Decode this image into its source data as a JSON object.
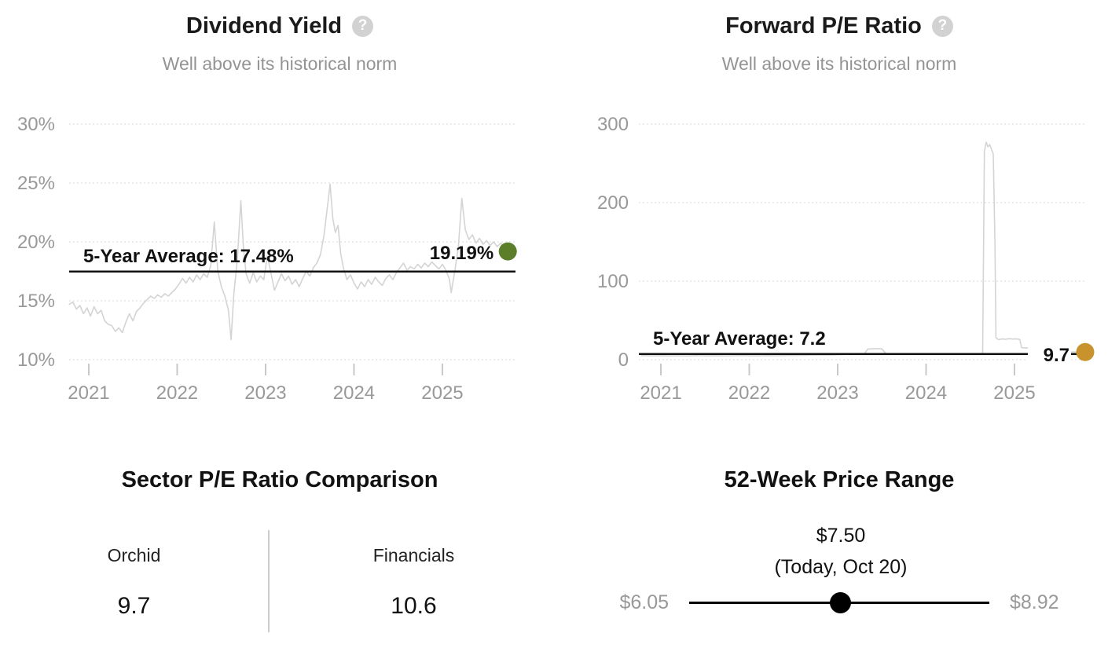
{
  "icons": {
    "help": "?"
  },
  "colors": {
    "dividend_dot": "#5a7e2a",
    "pe_dot": "#c8922d",
    "series_line": "#d4d4d4",
    "average_line": "#111111",
    "axis_text": "#999999"
  },
  "chart_data": [
    {
      "type": "line",
      "title": "Dividend Yield",
      "subtitle": "Well above its historical norm",
      "y_ticks": [
        30,
        25,
        20,
        15,
        10
      ],
      "y_suffix": "%",
      "y_range": [
        10,
        30
      ],
      "x_ticks": [
        2021,
        2022,
        2023,
        2024,
        2025
      ],
      "x_range": [
        2020.778,
        2025.827
      ],
      "grid": "dotted-horizontal",
      "legend": "none",
      "average": {
        "label": "5-Year Average: 17.48%",
        "value": 17.48
      },
      "current": {
        "label": "19.19%",
        "value": 19.19,
        "x": 2025.74,
        "dot_color": "#5a7e2a",
        "label_position": "above"
      },
      "series": [
        [
          2020.78,
          14.7
        ],
        [
          2020.82,
          14.9
        ],
        [
          2020.86,
          14.3
        ],
        [
          2020.9,
          14.6
        ],
        [
          2020.94,
          13.9
        ],
        [
          2020.98,
          14.4
        ],
        [
          2021.02,
          13.7
        ],
        [
          2021.06,
          14.5
        ],
        [
          2021.1,
          13.9
        ],
        [
          2021.14,
          14.2
        ],
        [
          2021.18,
          13.3
        ],
        [
          2021.22,
          13.0
        ],
        [
          2021.26,
          12.9
        ],
        [
          2021.3,
          12.4
        ],
        [
          2021.34,
          12.7
        ],
        [
          2021.38,
          12.3
        ],
        [
          2021.42,
          13.2
        ],
        [
          2021.46,
          13.9
        ],
        [
          2021.5,
          13.3
        ],
        [
          2021.54,
          14.1
        ],
        [
          2021.58,
          14.4
        ],
        [
          2021.62,
          14.8
        ],
        [
          2021.66,
          15.1
        ],
        [
          2021.7,
          15.4
        ],
        [
          2021.74,
          15.2
        ],
        [
          2021.78,
          15.5
        ],
        [
          2021.82,
          15.3
        ],
        [
          2021.86,
          15.6
        ],
        [
          2021.9,
          15.4
        ],
        [
          2021.94,
          15.7
        ],
        [
          2021.98,
          16.0
        ],
        [
          2022.02,
          16.4
        ],
        [
          2022.06,
          16.9
        ],
        [
          2022.1,
          16.5
        ],
        [
          2022.14,
          17.0
        ],
        [
          2022.18,
          16.6
        ],
        [
          2022.22,
          17.2
        ],
        [
          2022.26,
          16.8
        ],
        [
          2022.3,
          17.3
        ],
        [
          2022.34,
          17.0
        ],
        [
          2022.38,
          18.0
        ],
        [
          2022.42,
          21.7
        ],
        [
          2022.46,
          17.5
        ],
        [
          2022.5,
          16.2
        ],
        [
          2022.54,
          15.4
        ],
        [
          2022.58,
          14.2
        ],
        [
          2022.61,
          11.7
        ],
        [
          2022.64,
          15.5
        ],
        [
          2022.68,
          18.5
        ],
        [
          2022.72,
          23.5
        ],
        [
          2022.75,
          19.5
        ],
        [
          2022.78,
          17.3
        ],
        [
          2022.82,
          16.5
        ],
        [
          2022.86,
          17.4
        ],
        [
          2022.9,
          16.6
        ],
        [
          2022.94,
          17.1
        ],
        [
          2022.98,
          16.8
        ],
        [
          2023.02,
          18.8
        ],
        [
          2023.06,
          17.4
        ],
        [
          2023.1,
          15.9
        ],
        [
          2023.14,
          16.6
        ],
        [
          2023.18,
          17.3
        ],
        [
          2023.22,
          16.7
        ],
        [
          2023.26,
          17.1
        ],
        [
          2023.3,
          16.4
        ],
        [
          2023.34,
          16.8
        ],
        [
          2023.38,
          16.2
        ],
        [
          2023.42,
          16.9
        ],
        [
          2023.46,
          17.5
        ],
        [
          2023.5,
          17.1
        ],
        [
          2023.54,
          17.8
        ],
        [
          2023.58,
          18.2
        ],
        [
          2023.62,
          18.9
        ],
        [
          2023.66,
          20.5
        ],
        [
          2023.7,
          23.0
        ],
        [
          2023.73,
          24.9
        ],
        [
          2023.76,
          22.0
        ],
        [
          2023.79,
          20.8
        ],
        [
          2023.82,
          21.4
        ],
        [
          2023.85,
          19.0
        ],
        [
          2023.88,
          17.8
        ],
        [
          2023.92,
          16.8
        ],
        [
          2023.96,
          17.2
        ],
        [
          2024.0,
          16.5
        ],
        [
          2024.04,
          16.0
        ],
        [
          2024.08,
          16.6
        ],
        [
          2024.12,
          16.2
        ],
        [
          2024.16,
          16.8
        ],
        [
          2024.2,
          16.4
        ],
        [
          2024.24,
          17.0
        ],
        [
          2024.28,
          16.6
        ],
        [
          2024.32,
          16.3
        ],
        [
          2024.36,
          16.9
        ],
        [
          2024.4,
          17.2
        ],
        [
          2024.44,
          16.8
        ],
        [
          2024.48,
          17.4
        ],
        [
          2024.52,
          17.8
        ],
        [
          2024.56,
          18.2
        ],
        [
          2024.6,
          17.6
        ],
        [
          2024.64,
          17.9
        ],
        [
          2024.68,
          17.7
        ],
        [
          2024.72,
          18.1
        ],
        [
          2024.76,
          17.8
        ],
        [
          2024.8,
          18.2
        ],
        [
          2024.84,
          17.9
        ],
        [
          2024.88,
          18.3
        ],
        [
          2024.92,
          18.0
        ],
        [
          2024.96,
          17.7
        ],
        [
          2025.0,
          18.1
        ],
        [
          2025.04,
          17.6
        ],
        [
          2025.08,
          16.8
        ],
        [
          2025.1,
          15.7
        ],
        [
          2025.14,
          17.5
        ],
        [
          2025.18,
          19.5
        ],
        [
          2025.22,
          23.7
        ],
        [
          2025.26,
          21.0
        ],
        [
          2025.3,
          20.2
        ],
        [
          2025.34,
          20.6
        ],
        [
          2025.38,
          19.9
        ],
        [
          2025.42,
          20.3
        ],
        [
          2025.46,
          19.8
        ],
        [
          2025.5,
          20.1
        ],
        [
          2025.54,
          19.7
        ],
        [
          2025.58,
          20.0
        ],
        [
          2025.62,
          19.6
        ],
        [
          2025.66,
          19.9
        ],
        [
          2025.7,
          19.5
        ],
        [
          2025.74,
          19.19
        ]
      ]
    },
    {
      "type": "line",
      "title": "Forward P/E Ratio",
      "subtitle": "Well above its historical norm",
      "y_ticks": [
        300,
        200,
        100,
        0
      ],
      "y_suffix": "",
      "y_range": [
        0,
        300
      ],
      "x_ticks": [
        2021,
        2022,
        2023,
        2024,
        2025
      ],
      "x_range": [
        2020.751,
        2025.818
      ],
      "grid": "dotted-horizontal",
      "legend": "none",
      "average": {
        "label": "5-Year Average: 7.2",
        "value": 7.2
      },
      "current": {
        "label": "9.7",
        "value": 9.7,
        "x": 2025.8,
        "dot_color": "#c8922d",
        "label_position": "inline"
      },
      "series": [
        [
          2020.78,
          5.2
        ],
        [
          2020.9,
          4.9
        ],
        [
          2021.0,
          5.1
        ],
        [
          2021.1,
          4.8
        ],
        [
          2021.2,
          5.0
        ],
        [
          2021.3,
          4.7
        ],
        [
          2021.4,
          5.2
        ],
        [
          2021.5,
          4.9
        ],
        [
          2021.6,
          5.1
        ],
        [
          2021.7,
          4.8
        ],
        [
          2021.8,
          5.0
        ],
        [
          2021.9,
          5.3
        ],
        [
          2022.0,
          5.1
        ],
        [
          2022.1,
          4.9
        ],
        [
          2022.2,
          5.2
        ],
        [
          2022.3,
          5.0
        ],
        [
          2022.4,
          5.3
        ],
        [
          2022.5,
          5.6
        ],
        [
          2022.6,
          5.4
        ],
        [
          2022.7,
          5.8
        ],
        [
          2022.8,
          6.1
        ],
        [
          2022.9,
          5.9
        ],
        [
          2023.0,
          6.2
        ],
        [
          2023.1,
          6.5
        ],
        [
          2023.2,
          6.8
        ],
        [
          2023.3,
          7.0
        ],
        [
          2023.34,
          13.6
        ],
        [
          2023.4,
          13.9
        ],
        [
          2023.45,
          14.1
        ],
        [
          2023.5,
          13.8
        ],
        [
          2023.55,
          7.2
        ],
        [
          2023.6,
          6.9
        ],
        [
          2023.7,
          7.1
        ],
        [
          2023.8,
          6.8
        ],
        [
          2023.9,
          7.0
        ],
        [
          2024.0,
          6.7
        ],
        [
          2024.1,
          7.0
        ],
        [
          2024.2,
          6.8
        ],
        [
          2024.3,
          7.1
        ],
        [
          2024.4,
          6.9
        ],
        [
          2024.5,
          7.2
        ],
        [
          2024.6,
          7.0
        ],
        [
          2024.64,
          7.3
        ],
        [
          2024.66,
          265
        ],
        [
          2024.68,
          277
        ],
        [
          2024.7,
          271
        ],
        [
          2024.72,
          274
        ],
        [
          2024.74,
          268
        ],
        [
          2024.76,
          262
        ],
        [
          2024.78,
          145
        ],
        [
          2024.79,
          28
        ],
        [
          2024.82,
          25.5
        ],
        [
          2024.86,
          26.5
        ],
        [
          2024.9,
          26.0
        ],
        [
          2024.94,
          26.8
        ],
        [
          2024.98,
          26.3
        ],
        [
          2025.02,
          26.6
        ],
        [
          2025.06,
          25.8
        ],
        [
          2025.08,
          15.5
        ],
        [
          2025.12,
          14.8
        ],
        [
          2025.16,
          15.3
        ],
        [
          2025.2,
          14.6
        ],
        [
          2025.24,
          15.0
        ],
        [
          2025.28,
          13.9
        ],
        [
          2025.32,
          11.4
        ],
        [
          2025.36,
          10.8
        ],
        [
          2025.44,
          10.4
        ],
        [
          2025.52,
          10.0
        ],
        [
          2025.6,
          9.9
        ],
        [
          2025.7,
          9.8
        ],
        [
          2025.8,
          9.7
        ]
      ]
    },
    {
      "type": "table",
      "title": "Sector P/E Ratio Comparison",
      "columns": [
        {
          "label": "Orchid",
          "value": "9.7"
        },
        {
          "label": "Financials",
          "value": "10.6"
        }
      ]
    },
    {
      "type": "range",
      "title": "52-Week Price Range",
      "low_label": "$6.05",
      "high_label": "$8.92",
      "today_label": "$7.50",
      "today_note": "(Today, Oct 20)",
      "low": 6.05,
      "high": 8.92,
      "today": 7.5
    }
  ]
}
